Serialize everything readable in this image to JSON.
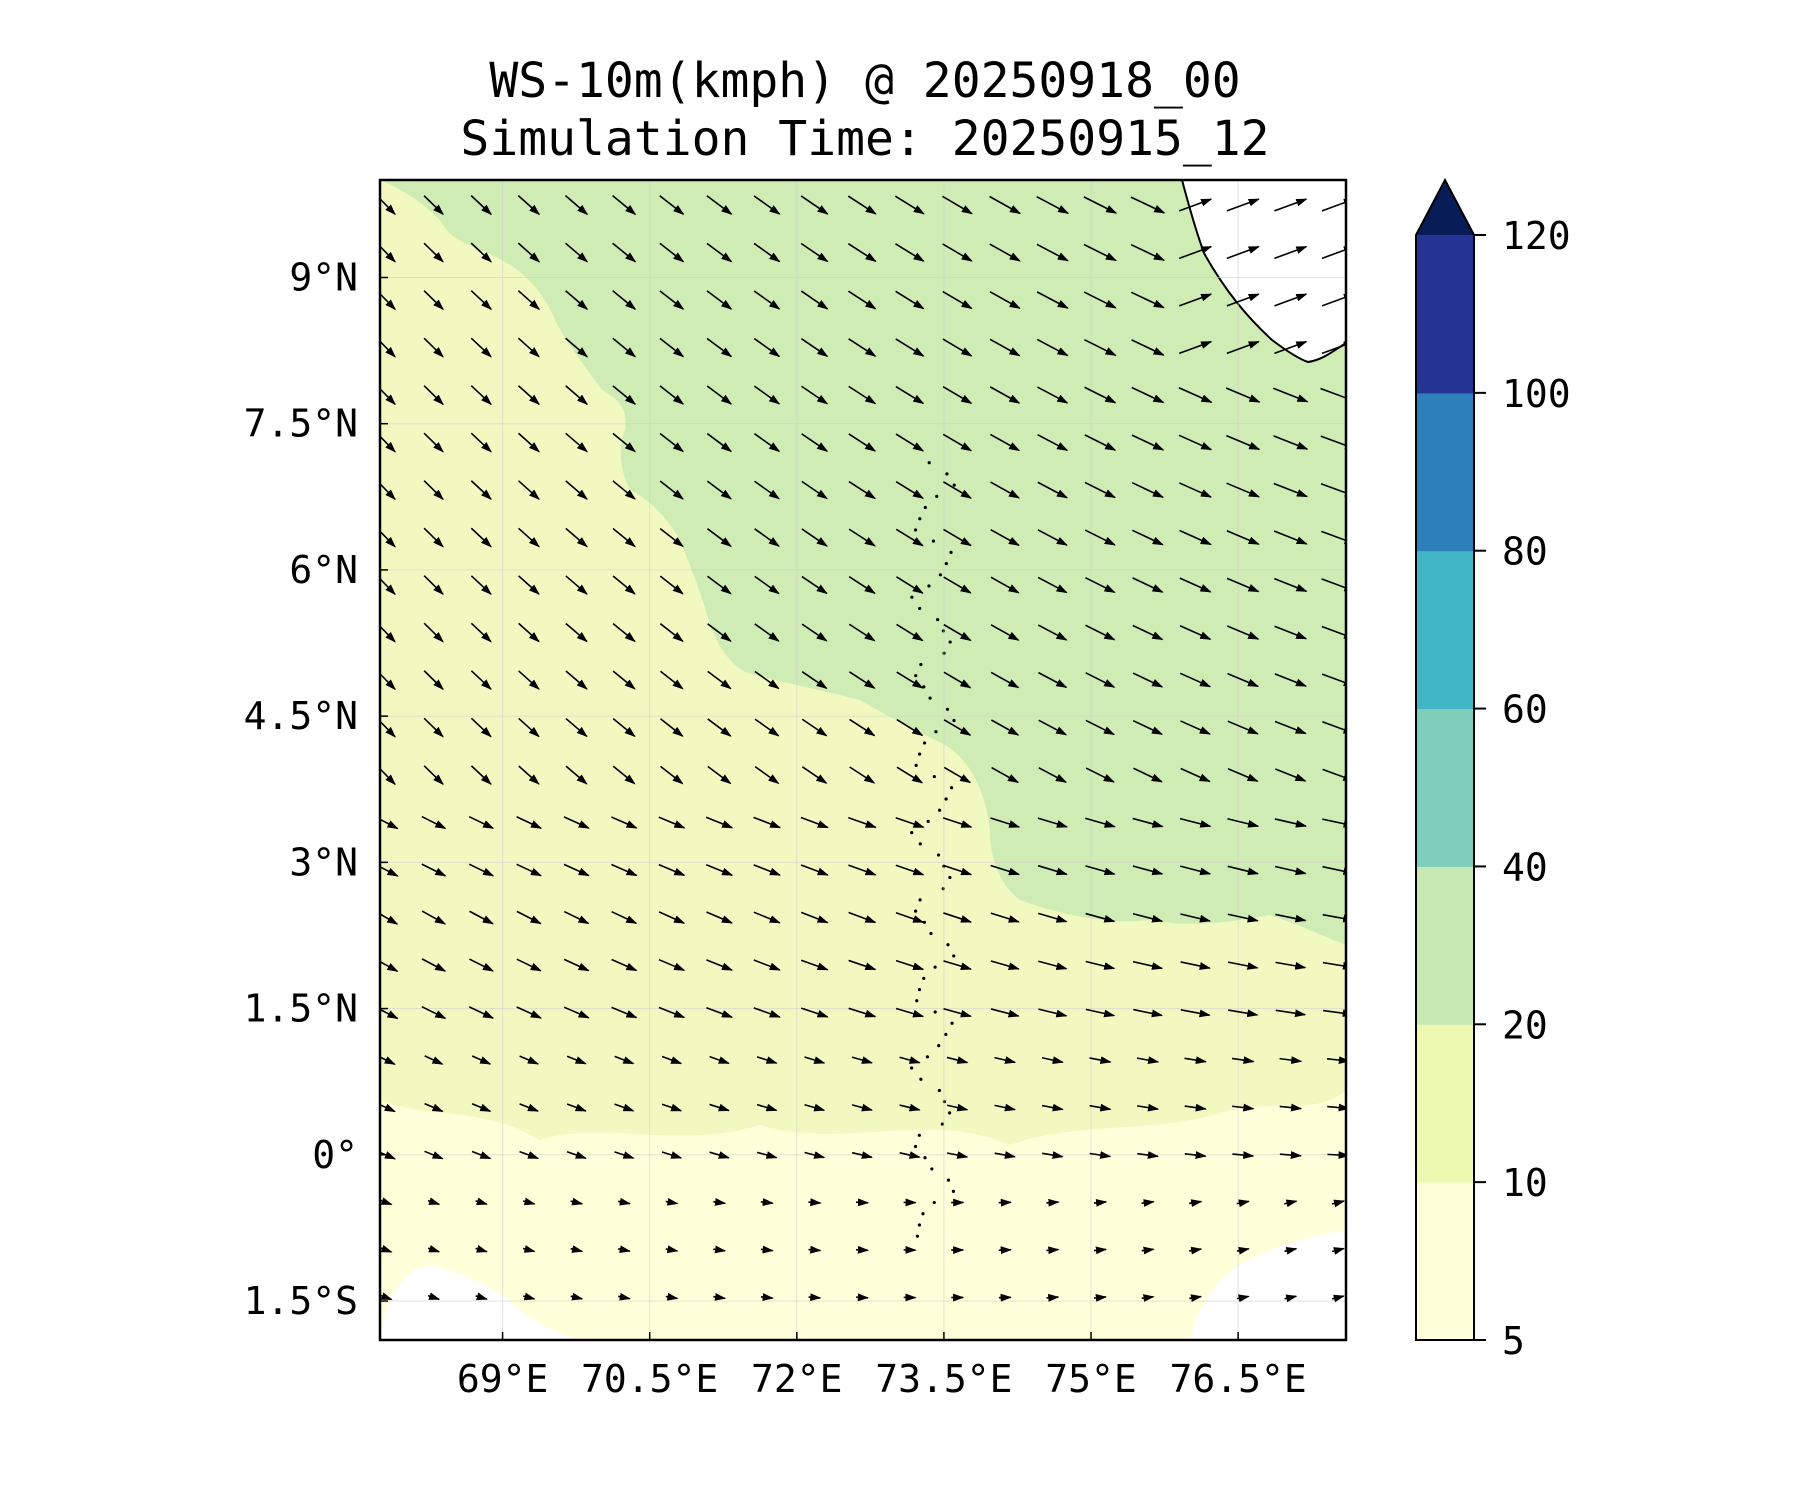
{
  "title": {
    "line1": "WS-10m(kmph) @ 20250918_00",
    "line2": "Simulation Time: 20250915_12"
  },
  "map": {
    "lon_range": [
      67.75,
      77.6
    ],
    "lat_range": [
      -1.9,
      10.0
    ],
    "lon_ticks": [
      {
        "value": 69.0,
        "label": "69°E"
      },
      {
        "value": 70.5,
        "label": "70.5°E"
      },
      {
        "value": 72.0,
        "label": "72°E"
      },
      {
        "value": 73.5,
        "label": "73.5°E"
      },
      {
        "value": 75.0,
        "label": "75°E"
      },
      {
        "value": 76.5,
        "label": "76.5°E"
      }
    ],
    "lat_ticks": [
      {
        "value": 9.0,
        "label": "9°N"
      },
      {
        "value": 7.5,
        "label": "7.5°N"
      },
      {
        "value": 6.0,
        "label": "6°N"
      },
      {
        "value": 4.5,
        "label": "4.5°N"
      },
      {
        "value": 3.0,
        "label": "3°N"
      },
      {
        "value": 1.5,
        "label": "1.5°N"
      },
      {
        "value": 0.0,
        "label": "0°"
      },
      {
        "value": -1.5,
        "label": "1.5°S"
      }
    ],
    "field_colors": {
      "band_5_10": "#ffffd9",
      "band_10_20": "#f1f9c1",
      "band_20_40": "#d0ecb5",
      "below_5": "#ffffff",
      "land": "#ffffff"
    }
  },
  "colorbar": {
    "levels": [
      5,
      10,
      20,
      40,
      60,
      80,
      100,
      120
    ],
    "labels": [
      "5",
      "10",
      "20",
      "40",
      "60",
      "80",
      "100",
      "120"
    ],
    "colors": [
      "#ffffd9",
      "#edf8b1",
      "#c7e9b4",
      "#7fcdbb",
      "#41b6c4",
      "#2c7fb8",
      "#253494"
    ],
    "extend_color": "#081d58",
    "extend": "max"
  }
}
